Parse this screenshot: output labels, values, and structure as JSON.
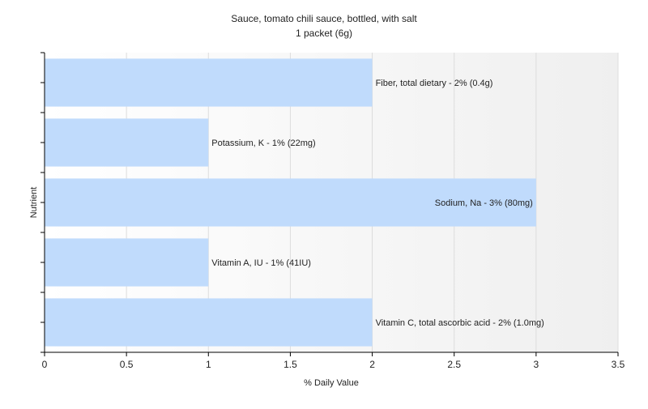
{
  "chart_data": {
    "type": "bar",
    "orientation": "horizontal",
    "title": "Sauce, tomato chili sauce, bottled, with salt",
    "subtitle": "1 packet (6g)",
    "xlabel": "% Daily Value",
    "ylabel": "Nutrient",
    "xlim": [
      0,
      3.5
    ],
    "xticks": [
      "0",
      "0.5",
      "1",
      "1.5",
      "2",
      "2.5",
      "3",
      "3.5"
    ],
    "grid": true,
    "bar_color": "#c0dbfc",
    "categories": [
      "Fiber, total dietary",
      "Potassium, K",
      "Sodium, Na",
      "Vitamin A, IU",
      "Vitamin C, total ascorbic acid"
    ],
    "values": [
      2,
      1,
      3,
      1,
      2
    ],
    "labels": [
      "Fiber, total dietary - 2% (0.4g)",
      "Potassium, K - 1% (22mg)",
      "Sodium, Na - 3% (80mg)",
      "Vitamin A, IU - 1% (41IU)",
      "Vitamin C, total ascorbic acid - 2% (1.0mg)"
    ]
  }
}
